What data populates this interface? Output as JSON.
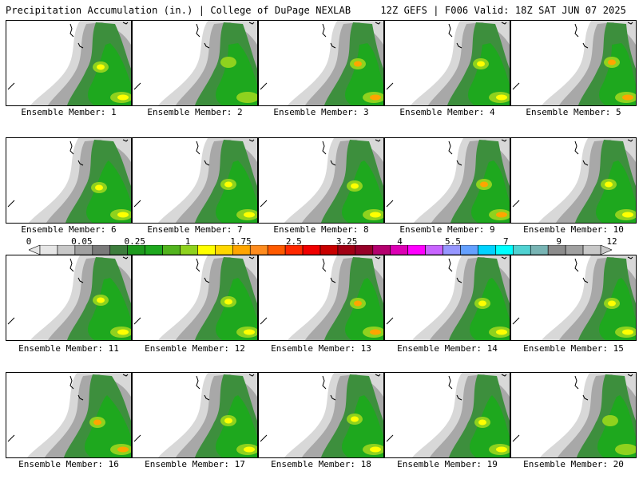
{
  "header": {
    "title_left": "Precipitation Accumulation (in.) | College of DuPage NEXLAB",
    "title_right": "12Z GEFS | F006 Valid: 18Z SAT JUN 07 2025"
  },
  "map": {
    "field": "precipitation accumulation",
    "units": "in.",
    "members": [
      {
        "label": "Ensemble Member: 1",
        "max_category": "yellow"
      },
      {
        "label": "Ensemble Member: 2",
        "max_category": "yellow-green"
      },
      {
        "label": "Ensemble Member: 3",
        "max_category": "orange"
      },
      {
        "label": "Ensemble Member: 4",
        "max_category": "yellow"
      },
      {
        "label": "Ensemble Member: 5",
        "max_category": "orange"
      },
      {
        "label": "Ensemble Member: 6",
        "max_category": "yellow"
      },
      {
        "label": "Ensemble Member: 7",
        "max_category": "yellow"
      },
      {
        "label": "Ensemble Member: 8",
        "max_category": "yellow"
      },
      {
        "label": "Ensemble Member: 9",
        "max_category": "orange"
      },
      {
        "label": "Ensemble Member: 10",
        "max_category": "yellow"
      },
      {
        "label": "Ensemble Member: 11",
        "max_category": "yellow"
      },
      {
        "label": "Ensemble Member: 12",
        "max_category": "yellow"
      },
      {
        "label": "Ensemble Member: 13",
        "max_category": "orange"
      },
      {
        "label": "Ensemble Member: 14",
        "max_category": "yellow"
      },
      {
        "label": "Ensemble Member: 15",
        "max_category": "yellow"
      },
      {
        "label": "Ensemble Member: 16",
        "max_category": "orange"
      },
      {
        "label": "Ensemble Member: 17",
        "max_category": "yellow"
      },
      {
        "label": "Ensemble Member: 18",
        "max_category": "yellow"
      },
      {
        "label": "Ensemble Member: 19",
        "max_category": "yellow"
      },
      {
        "label": "Ensemble Member: 20",
        "max_category": "yellow-green"
      }
    ]
  },
  "colorbar": {
    "tick_labels": [
      "0",
      "0.05",
      "0.25",
      "1",
      "1.75",
      "2.5",
      "3.25",
      "4",
      "5.5",
      "7",
      "9",
      "12"
    ],
    "colors": [
      "#e6e6e6",
      "#c8c8c8",
      "#a0a0a0",
      "#7a7a7a",
      "#3d7d3d",
      "#1e9a1e",
      "#1ea81e",
      "#52b41e",
      "#8fd21e",
      "#ffff00",
      "#ffd700",
      "#ffa500",
      "#ff8c1e",
      "#ff5a00",
      "#ff2800",
      "#f00000",
      "#c80000",
      "#a00014",
      "#960028",
      "#b4006e",
      "#dc00b4",
      "#ff00ff",
      "#c864ff",
      "#9696ff",
      "#64a0ff",
      "#00d2ff",
      "#00ffff",
      "#50d2d2",
      "#78b4b4",
      "#8c8c8c",
      "#a0a0a0",
      "#c8c8c8"
    ]
  }
}
